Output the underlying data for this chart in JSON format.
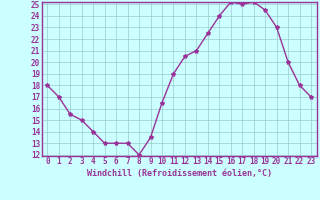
{
  "x": [
    0,
    1,
    2,
    3,
    4,
    5,
    6,
    7,
    8,
    9,
    10,
    11,
    12,
    13,
    14,
    15,
    16,
    17,
    18,
    19,
    20,
    21,
    22,
    23
  ],
  "y": [
    18,
    17,
    15.5,
    15,
    14,
    13,
    13,
    13,
    12,
    13.5,
    16.5,
    19,
    20.5,
    21,
    22.5,
    24,
    25.2,
    25,
    25.2,
    24.5,
    23,
    20,
    18,
    17
  ],
  "line_color": "#993399",
  "marker": "*",
  "marker_size": 3,
  "bg_color": "#ccffff",
  "grid_color": "#99cccc",
  "xlabel": "Windchill (Refroidissement éolien,°C)",
  "xlabel_fontsize": 6,
  "tick_fontsize": 5.5,
  "ylim": [
    12,
    25
  ],
  "xlim": [
    -0.5,
    23.5
  ],
  "yticks": [
    12,
    13,
    14,
    15,
    16,
    17,
    18,
    19,
    20,
    21,
    22,
    23,
    24,
    25
  ],
  "xticks": [
    0,
    1,
    2,
    3,
    4,
    5,
    6,
    7,
    8,
    9,
    10,
    11,
    12,
    13,
    14,
    15,
    16,
    17,
    18,
    19,
    20,
    21,
    22,
    23
  ],
  "spine_color": "#993399",
  "linewidth": 1.0
}
